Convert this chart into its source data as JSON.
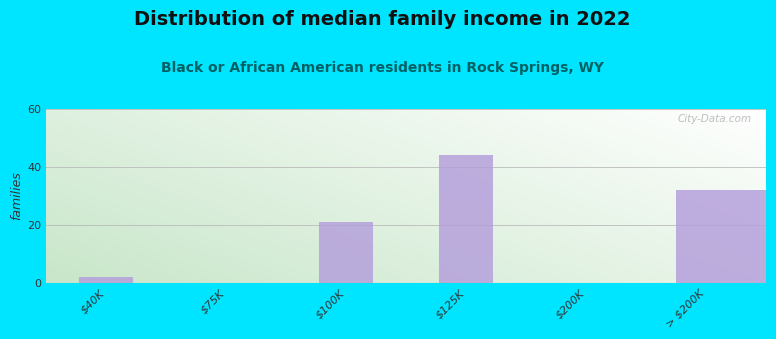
{
  "title": "Distribution of median family income in 2022",
  "subtitle": "Black or African American residents in Rock Springs, WY",
  "categories": [
    "$40K",
    "$75K",
    "$100K",
    "$125K",
    "$200K",
    "> $200K"
  ],
  "values": [
    2,
    0,
    21,
    44,
    0,
    32
  ],
  "bar_color": "#b39ddb",
  "background_outer": "#00e5ff",
  "background_inner_top_right": "#e8f5e9",
  "background_inner_bottom_left": "#c8e6c9",
  "ylabel": "families",
  "ylim": [
    0,
    60
  ],
  "yticks": [
    0,
    20,
    40,
    60
  ],
  "watermark": "City-Data.com",
  "title_fontsize": 14,
  "subtitle_fontsize": 10,
  "subtitle_color": "#006064",
  "tick_fontsize": 8
}
